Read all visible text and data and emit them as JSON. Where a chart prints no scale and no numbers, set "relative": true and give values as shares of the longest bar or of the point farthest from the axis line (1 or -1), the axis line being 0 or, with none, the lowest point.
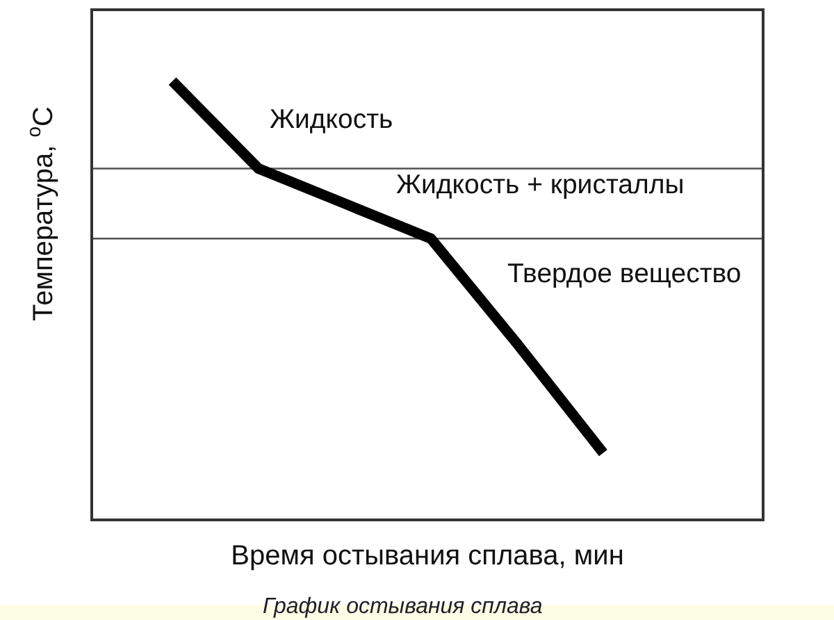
{
  "chart_data": {
    "type": "line",
    "relative": true,
    "xlabel": "Время остывания сплава, мин",
    "ylabel": "Температура, $^{o}$C",
    "categories": [
      null,
      null,
      null,
      null,
      null,
      null
    ],
    "series": [
      {
        "color": "#000000",
        "values": [
          1.0,
          0.8,
          0.72,
          0.64,
          0.4,
          0.15
        ]
      }
    ],
    "line_style": "solid",
    "ref_lines": [
      {
        "axis": "y",
        "value": 0.8,
        "color": "#505050"
      },
      {
        "axis": "y",
        "value": 0.64,
        "color": "#505050"
      }
    ],
    "annotations": [
      "Жидкость",
      "Жидкость + кристаллы",
      "Твердое вещество",
      "График остывания сплава"
    ]
  }
}
